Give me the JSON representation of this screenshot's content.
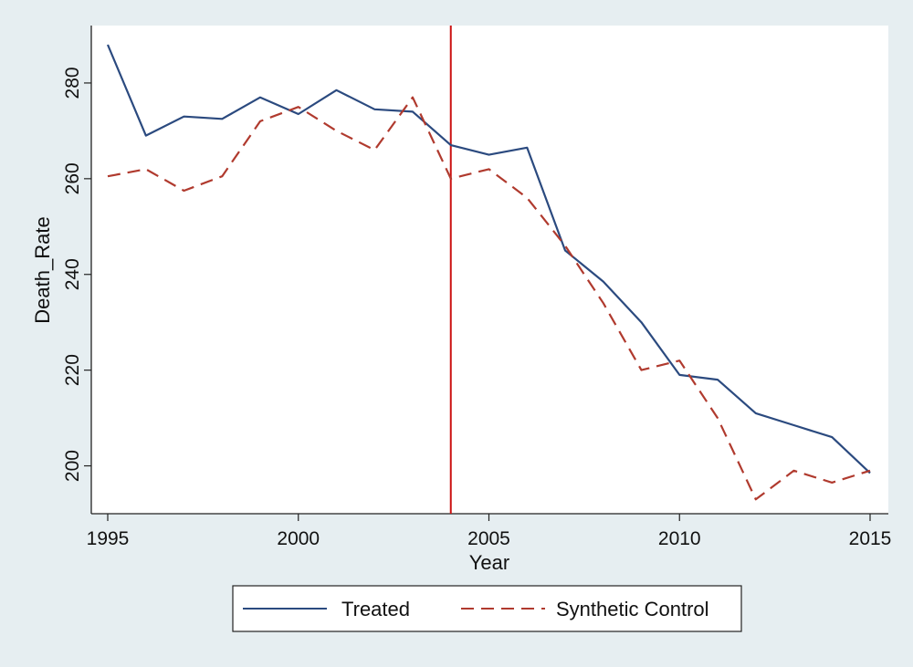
{
  "chart_data": {
    "type": "line",
    "title": "",
    "xlabel": "Year",
    "ylabel": "Death_Rate",
    "xlim": [
      1995,
      2015
    ],
    "ylim": [
      190,
      292
    ],
    "xticks": [
      1995,
      2000,
      2005,
      2010,
      2015
    ],
    "yticks": [
      200,
      220,
      240,
      260,
      280
    ],
    "x": [
      1995,
      1996,
      1997,
      1998,
      1999,
      2000,
      2001,
      2002,
      2003,
      2004,
      2005,
      2006,
      2007,
      2008,
      2009,
      2010,
      2011,
      2012,
      2013,
      2014,
      2015
    ],
    "series": [
      {
        "name": "Treated",
        "color": "#2b4a7f",
        "style": "solid",
        "values": [
          288,
          269,
          273,
          272.5,
          277,
          273.5,
          278.5,
          274.5,
          274,
          267,
          265,
          266.5,
          245,
          238.5,
          230,
          219,
          218,
          211,
          208.5,
          206,
          198.5
        ]
      },
      {
        "name": "Synthetic Control",
        "color": "#b03a2e",
        "style": "dashed",
        "values": [
          260.5,
          262,
          257.5,
          260.5,
          272,
          275,
          270,
          266,
          277,
          260,
          262,
          256,
          246,
          234,
          220,
          222,
          210,
          193,
          199,
          196.5,
          199
        ]
      }
    ],
    "reference_line": {
      "x": 2004,
      "color": "#cc1111"
    },
    "legend_position": "bottom"
  }
}
